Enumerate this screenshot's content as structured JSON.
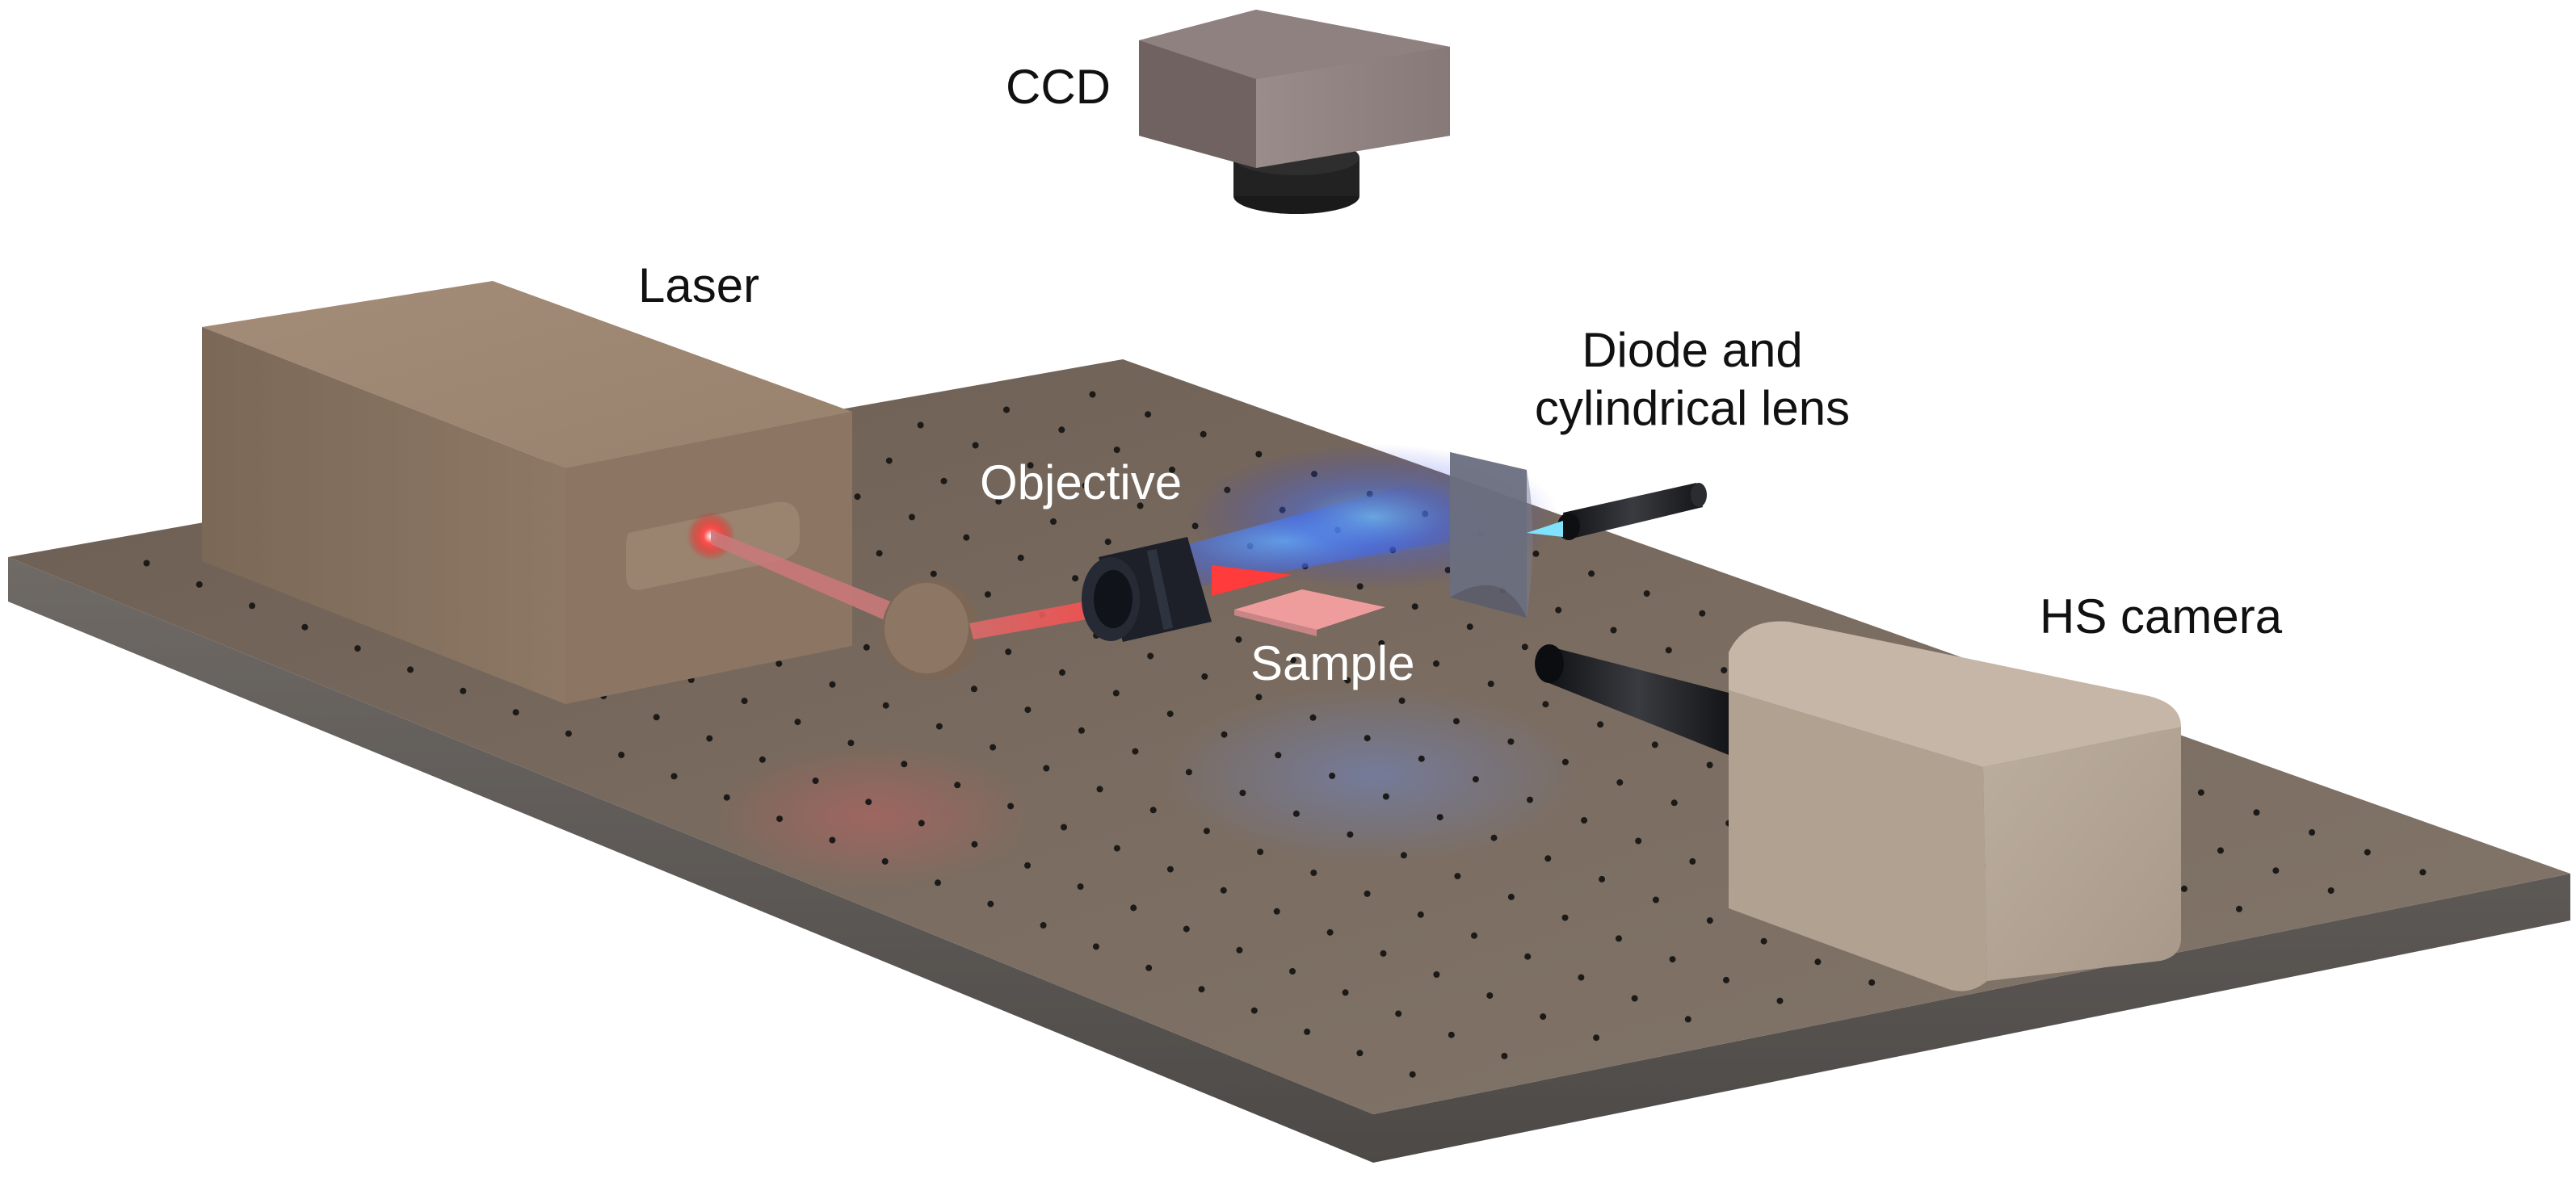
{
  "labels": {
    "ccd": "CCD",
    "laser": "Laser",
    "objective": "Objective",
    "sample": "Sample",
    "diode_line1": "Diode and",
    "diode_line2": "cylindrical lens",
    "hs_camera": "HS camera"
  },
  "colors": {
    "table_top": "#77695c",
    "table_edge": "#5f5a55",
    "laser_body": "#8a7563",
    "hs_camera_body": "#b3a291",
    "ccd_body": "#7d6f6c",
    "lens_black": "#1a1c22",
    "laser_beam": "#ff3b3b",
    "diode_light": "#3a6cff",
    "text_dark": "#111111",
    "text_light": "#ffffff"
  },
  "icons": {
    "laser": "laser-icon",
    "ccd": "ccd-camera-icon",
    "hs_camera": "hs-camera-icon",
    "objective": "objective-lens-icon",
    "mirror": "mirror-icon",
    "diode": "diode-icon",
    "cylindrical_lens": "cylindrical-lens-icon",
    "sample": "sample-icon",
    "table": "optical-table-icon"
  }
}
